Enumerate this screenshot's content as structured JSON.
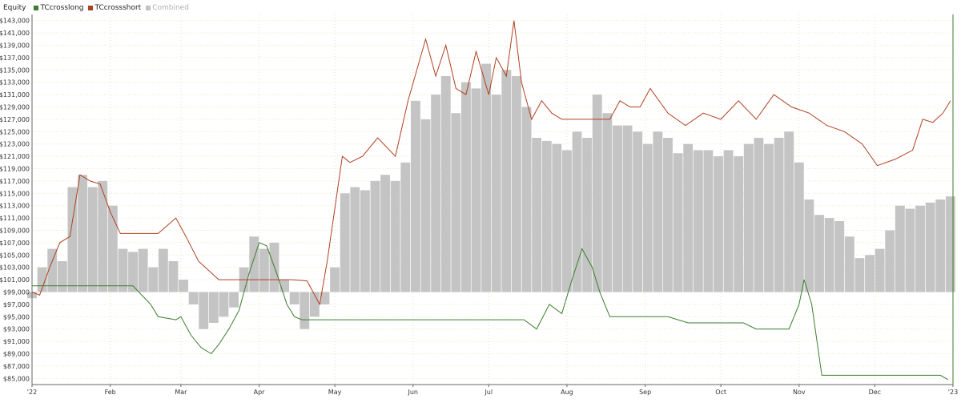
{
  "chart_data": {
    "type": "bar",
    "title": "Equity",
    "legend_placement": "top-left",
    "grid": true,
    "ylim": [
      84000,
      144000
    ],
    "baseline": 99000,
    "y_ticks": [
      "$85,000",
      "$87,000",
      "$89,000",
      "$91,000",
      "$93,000",
      "$95,000",
      "$97,000",
      "$99,000",
      "$101,000",
      "$103,000",
      "$105,000",
      "$107,000",
      "$109,000",
      "$111,000",
      "$113,000",
      "$115,000",
      "$117,000",
      "$119,000",
      "$121,000",
      "$123,000",
      "$125,000",
      "$127,000",
      "$129,000",
      "$131,000",
      "$133,000",
      "$135,000",
      "$137,000",
      "$139,000",
      "$141,000",
      "$143,000"
    ],
    "x_ticks": [
      "'22",
      "Feb",
      "Mar",
      "Apr",
      "May",
      "Jun",
      "Jul",
      "Aug",
      "Sep",
      "Oct",
      "Nov",
      "Dec",
      "'23"
    ],
    "series": [
      {
        "name": "TCcrosslong",
        "type": "line",
        "color": "#3a7d2c",
        "x": [
          "2022-01-01",
          "2022-02-10",
          "2022-02-17",
          "2022-02-20",
          "2022-02-27",
          "2022-03-01",
          "2022-03-05",
          "2022-03-09",
          "2022-03-13",
          "2022-03-16",
          "2022-03-20",
          "2022-03-24",
          "2022-03-28",
          "2022-04-01",
          "2022-04-04",
          "2022-04-08",
          "2022-04-12",
          "2022-04-15",
          "2022-04-18",
          "2022-04-22",
          "2022-05-01",
          "2022-06-01",
          "2022-07-15",
          "2022-07-20",
          "2022-07-25",
          "2022-07-30",
          "2022-08-03",
          "2022-08-07",
          "2022-08-11",
          "2022-08-14",
          "2022-08-18",
          "2022-08-22",
          "2022-09-10",
          "2022-09-18",
          "2022-10-10",
          "2022-10-15",
          "2022-10-28",
          "2022-11-01",
          "2022-11-03",
          "2022-11-06",
          "2022-11-10",
          "2022-12-27",
          "2022-12-30"
        ],
        "y": [
          100000,
          100000,
          97000,
          95000,
          94500,
          95000,
          92000,
          90000,
          89000,
          90500,
          93000,
          96000,
          102000,
          107000,
          106500,
          102000,
          97000,
          95000,
          94500,
          94500,
          94500,
          94500,
          94500,
          93000,
          97000,
          95500,
          101000,
          106000,
          103000,
          99000,
          95000,
          95000,
          95000,
          94000,
          94000,
          93000,
          93000,
          97000,
          101000,
          97000,
          85500,
          85500,
          84800
        ]
      },
      {
        "name": "TCcrossshort",
        "type": "line",
        "color": "#b04020",
        "x": [
          "2022-01-01",
          "2022-01-04",
          "2022-01-08",
          "2022-01-12",
          "2022-01-16",
          "2022-01-20",
          "2022-01-24",
          "2022-01-28",
          "2022-02-01",
          "2022-02-05",
          "2022-02-09",
          "2022-02-13",
          "2022-02-20",
          "2022-02-27",
          "2022-03-03",
          "2022-03-08",
          "2022-03-16",
          "2022-04-01",
          "2022-04-14",
          "2022-04-20",
          "2022-04-25",
          "2022-04-28",
          "2022-05-04",
          "2022-05-07",
          "2022-05-12",
          "2022-05-18",
          "2022-05-25",
          "2022-05-30",
          "2022-06-06",
          "2022-06-10",
          "2022-06-14",
          "2022-06-18",
          "2022-06-22",
          "2022-06-26",
          "2022-07-01",
          "2022-07-04",
          "2022-07-08",
          "2022-07-11",
          "2022-07-14",
          "2022-07-18",
          "2022-07-22",
          "2022-07-26",
          "2022-07-30",
          "2022-08-05",
          "2022-08-18",
          "2022-08-22",
          "2022-08-26",
          "2022-08-30",
          "2022-09-03",
          "2022-09-10",
          "2022-09-17",
          "2022-09-24",
          "2022-10-01",
          "2022-10-08",
          "2022-10-15",
          "2022-10-22",
          "2022-10-29",
          "2022-11-05",
          "2022-11-12",
          "2022-11-19",
          "2022-11-26",
          "2022-12-02",
          "2022-12-09",
          "2022-12-16",
          "2022-12-20",
          "2022-12-24",
          "2022-12-28",
          "2022-12-31"
        ],
        "y": [
          99000,
          98500,
          103000,
          107000,
          108000,
          118000,
          117000,
          116500,
          112000,
          108500,
          108500,
          108500,
          108500,
          111000,
          108000,
          104000,
          101000,
          101000,
          101000,
          100800,
          97000,
          104000,
          121000,
          120000,
          121000,
          124000,
          121000,
          130000,
          140000,
          134000,
          139000,
          132000,
          131000,
          138000,
          131000,
          137000,
          134000,
          143000,
          133000,
          127000,
          130000,
          128000,
          127000,
          127000,
          127000,
          130000,
          129000,
          129000,
          132000,
          128000,
          126000,
          128000,
          127000,
          130000,
          127000,
          131000,
          129000,
          128000,
          126000,
          125000,
          123000,
          119500,
          120500,
          122000,
          127000,
          126500,
          128000,
          130000
        ]
      },
      {
        "name": "Combined",
        "type": "bar",
        "color": "#c4c4c4",
        "x": [
          "2022-01-01",
          "2022-01-05",
          "2022-01-09",
          "2022-01-13",
          "2022-01-17",
          "2022-01-21",
          "2022-01-25",
          "2022-01-29",
          "2022-02-02",
          "2022-02-06",
          "2022-02-10",
          "2022-02-14",
          "2022-02-18",
          "2022-02-22",
          "2022-02-26",
          "2022-03-02",
          "2022-03-06",
          "2022-03-10",
          "2022-03-14",
          "2022-03-18",
          "2022-03-22",
          "2022-03-26",
          "2022-03-30",
          "2022-04-03",
          "2022-04-07",
          "2022-04-11",
          "2022-04-15",
          "2022-04-19",
          "2022-04-23",
          "2022-04-27",
          "2022-05-01",
          "2022-05-05",
          "2022-05-09",
          "2022-05-13",
          "2022-05-17",
          "2022-05-21",
          "2022-05-25",
          "2022-05-29",
          "2022-06-02",
          "2022-06-06",
          "2022-06-10",
          "2022-06-14",
          "2022-06-18",
          "2022-06-22",
          "2022-06-26",
          "2022-06-30",
          "2022-07-04",
          "2022-07-08",
          "2022-07-12",
          "2022-07-16",
          "2022-07-20",
          "2022-07-24",
          "2022-07-28",
          "2022-08-01",
          "2022-08-05",
          "2022-08-09",
          "2022-08-13",
          "2022-08-17",
          "2022-08-21",
          "2022-08-25",
          "2022-08-29",
          "2022-09-02",
          "2022-09-06",
          "2022-09-10",
          "2022-09-14",
          "2022-09-18",
          "2022-09-22",
          "2022-09-26",
          "2022-09-30",
          "2022-10-04",
          "2022-10-08",
          "2022-10-12",
          "2022-10-16",
          "2022-10-20",
          "2022-10-24",
          "2022-10-28",
          "2022-11-01",
          "2022-11-05",
          "2022-11-09",
          "2022-11-13",
          "2022-11-17",
          "2022-11-21",
          "2022-11-25",
          "2022-11-29",
          "2022-12-03",
          "2022-12-07",
          "2022-12-11",
          "2022-12-15",
          "2022-12-19",
          "2022-12-23",
          "2022-12-27",
          "2022-12-31"
        ],
        "values": [
          98000,
          103000,
          106000,
          104000,
          116000,
          118000,
          116000,
          117000,
          113000,
          106000,
          105500,
          106000,
          103000,
          106000,
          104000,
          101000,
          97000,
          93000,
          94000,
          95000,
          96500,
          103000,
          108000,
          106000,
          107000,
          101000,
          97000,
          93000,
          95000,
          97000,
          103000,
          115000,
          116000,
          115500,
          117000,
          118000,
          117000,
          120000,
          130000,
          127000,
          131000,
          134000,
          128000,
          133000,
          132000,
          136000,
          131000,
          135000,
          134000,
          129000,
          124000,
          123500,
          123000,
          122000,
          125000,
          124000,
          131000,
          128000,
          126000,
          126000,
          125000,
          123000,
          125000,
          124000,
          121500,
          123000,
          122000,
          122000,
          121000,
          122000,
          121000,
          123000,
          124000,
          123000,
          124000,
          125000,
          120000,
          114000,
          111500,
          111000,
          110500,
          108000,
          104500,
          105000,
          106000,
          109000,
          113000,
          112500,
          113000,
          113500,
          114000,
          114500
        ]
      }
    ]
  }
}
